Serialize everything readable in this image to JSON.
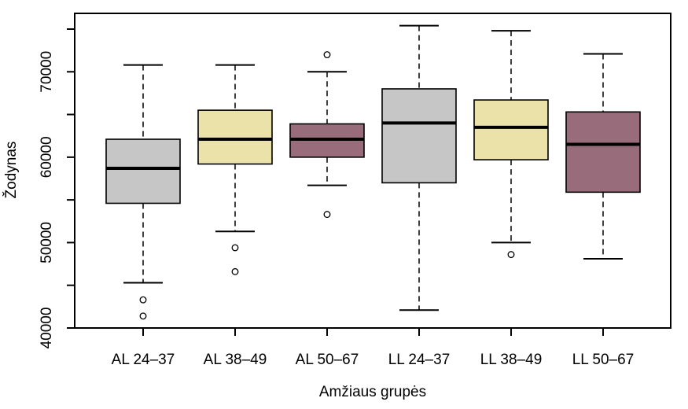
{
  "figure": {
    "background": "#ffffff",
    "frame_color": "#000000",
    "text_color": "#000000"
  },
  "chart_data": {
    "type": "boxplot",
    "title": "",
    "xlabel": "Amžiaus grupės",
    "ylabel": "Žodynas",
    "ylim": [
      40000,
      76840
    ],
    "grid": false,
    "y_ticks": {
      "all": [
        40000,
        45000,
        50000,
        55000,
        60000,
        65000,
        70000,
        75000
      ],
      "labeled": [
        40000,
        50000,
        60000,
        70000
      ]
    },
    "categories": [
      "AL 24–37",
      "AL 38–49",
      "AL 50–67",
      "LL 24–37",
      "LL 38–49",
      "LL 50–67"
    ],
    "palette": [
      "#C6C6C6",
      "#EAE2A8",
      "#986C7B"
    ],
    "boxes": [
      {
        "category": "AL 24–37",
        "color_index": 0,
        "whisker_low": 45300,
        "q1": 54600,
        "median": 58700,
        "q3": 62100,
        "whisker_high": 70800,
        "outliers": [
          43300,
          41400
        ]
      },
      {
        "category": "AL 38–49",
        "color_index": 1,
        "whisker_low": 51300,
        "q1": 59200,
        "median": 62100,
        "q3": 65500,
        "whisker_high": 70800,
        "outliers": [
          49400,
          46600
        ]
      },
      {
        "category": "AL 50–67",
        "color_index": 2,
        "whisker_low": 56700,
        "q1": 60000,
        "median": 62100,
        "q3": 63900,
        "whisker_high": 70000,
        "outliers": [
          72000,
          53300
        ]
      },
      {
        "category": "LL 24–37",
        "color_index": 0,
        "whisker_low": 42100,
        "q1": 57000,
        "median": 64000,
        "q3": 68000,
        "whisker_high": 75400,
        "outliers": []
      },
      {
        "category": "LL 38–49",
        "color_index": 1,
        "whisker_low": 50000,
        "q1": 59700,
        "median": 63500,
        "q3": 66700,
        "whisker_high": 74800,
        "outliers": [
          48600
        ]
      },
      {
        "category": "LL 50–67",
        "color_index": 2,
        "whisker_low": 48100,
        "q1": 55900,
        "median": 61500,
        "q3": 65300,
        "whisker_high": 72100,
        "outliers": []
      }
    ]
  }
}
